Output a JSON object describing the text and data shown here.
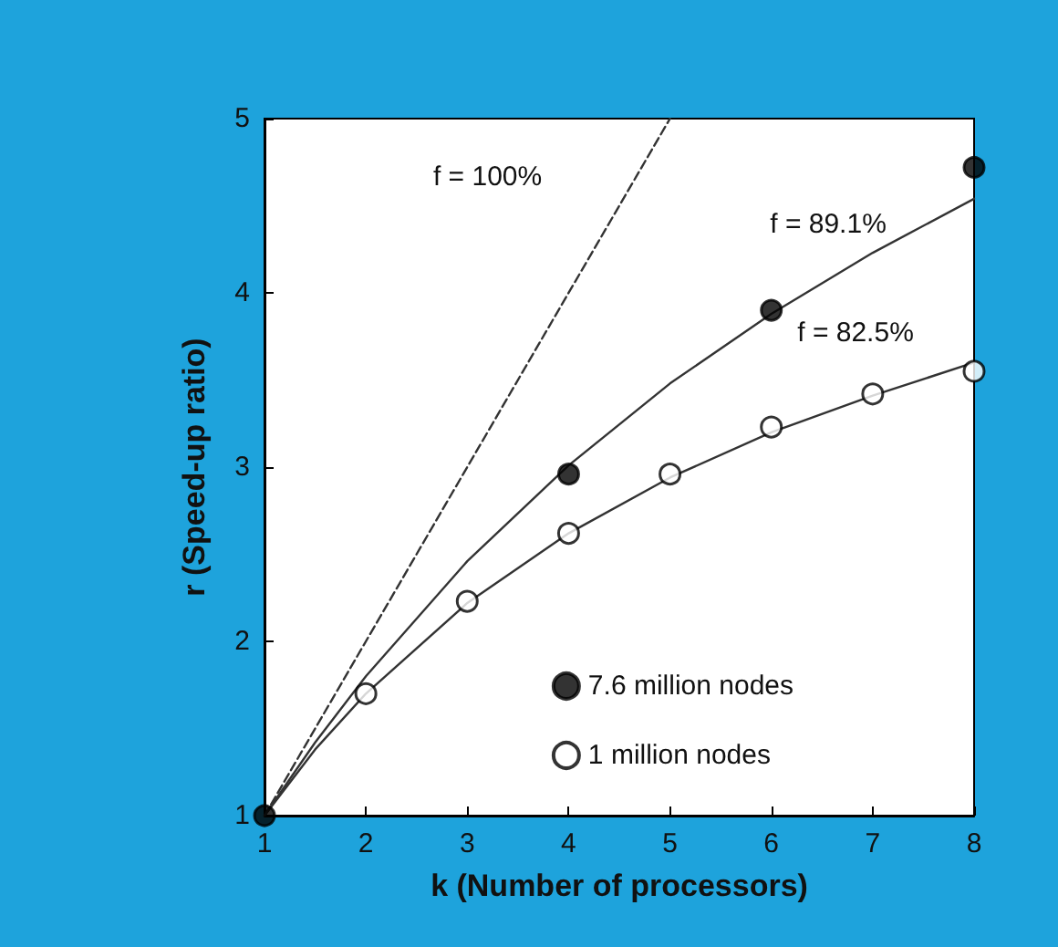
{
  "chart_data": {
    "type": "line",
    "xlabel": "k (Number of processors)",
    "ylabel": "r (Speed-up ratio)",
    "xlim": [
      1,
      8
    ],
    "xticks": [
      1,
      2,
      3,
      4,
      5,
      6,
      7,
      8
    ],
    "ylim": [
      1,
      5
    ],
    "yticks": [
      1,
      2,
      3,
      4,
      5
    ],
    "grid": false,
    "legend": "bottom right",
    "series": [
      {
        "line_style": "dashed",
        "marker": "none",
        "color": "#333333",
        "x": [
          1,
          5
        ],
        "values": [
          1,
          5
        ]
      },
      {
        "line_style": "solid",
        "marker": "none",
        "color": "#333333",
        "x": [
          1,
          1.5,
          2,
          3,
          4,
          5,
          6,
          7,
          8
        ],
        "values": [
          1,
          1.42,
          1.8,
          2.46,
          3.01,
          3.48,
          3.88,
          4.23,
          4.54
        ]
      },
      {
        "line_style": "solid",
        "marker": "none",
        "color": "#333333",
        "x": [
          1,
          1.5,
          2,
          3,
          4,
          5,
          6,
          7,
          8
        ],
        "values": [
          1,
          1.38,
          1.7,
          2.22,
          2.62,
          2.94,
          3.2,
          3.41,
          3.6
        ]
      },
      {
        "type": "scatter",
        "name": "7.6 million nodes",
        "marker": "circle",
        "color": "#000000",
        "x": [
          1,
          4,
          6,
          8
        ],
        "values": [
          1,
          2.96,
          3.9,
          4.72
        ]
      },
      {
        "type": "scatter",
        "name": "1 million nodes",
        "marker": "circle",
        "color": "#ffffff",
        "x": [
          2,
          3,
          4,
          5,
          6,
          7,
          8
        ],
        "values": [
          1.7,
          2.23,
          2.62,
          2.96,
          3.23,
          3.42,
          3.55
        ]
      }
    ],
    "annotations": [
      "f = 100%",
      "f = 89.1%",
      "f = 82.5%"
    ]
  }
}
